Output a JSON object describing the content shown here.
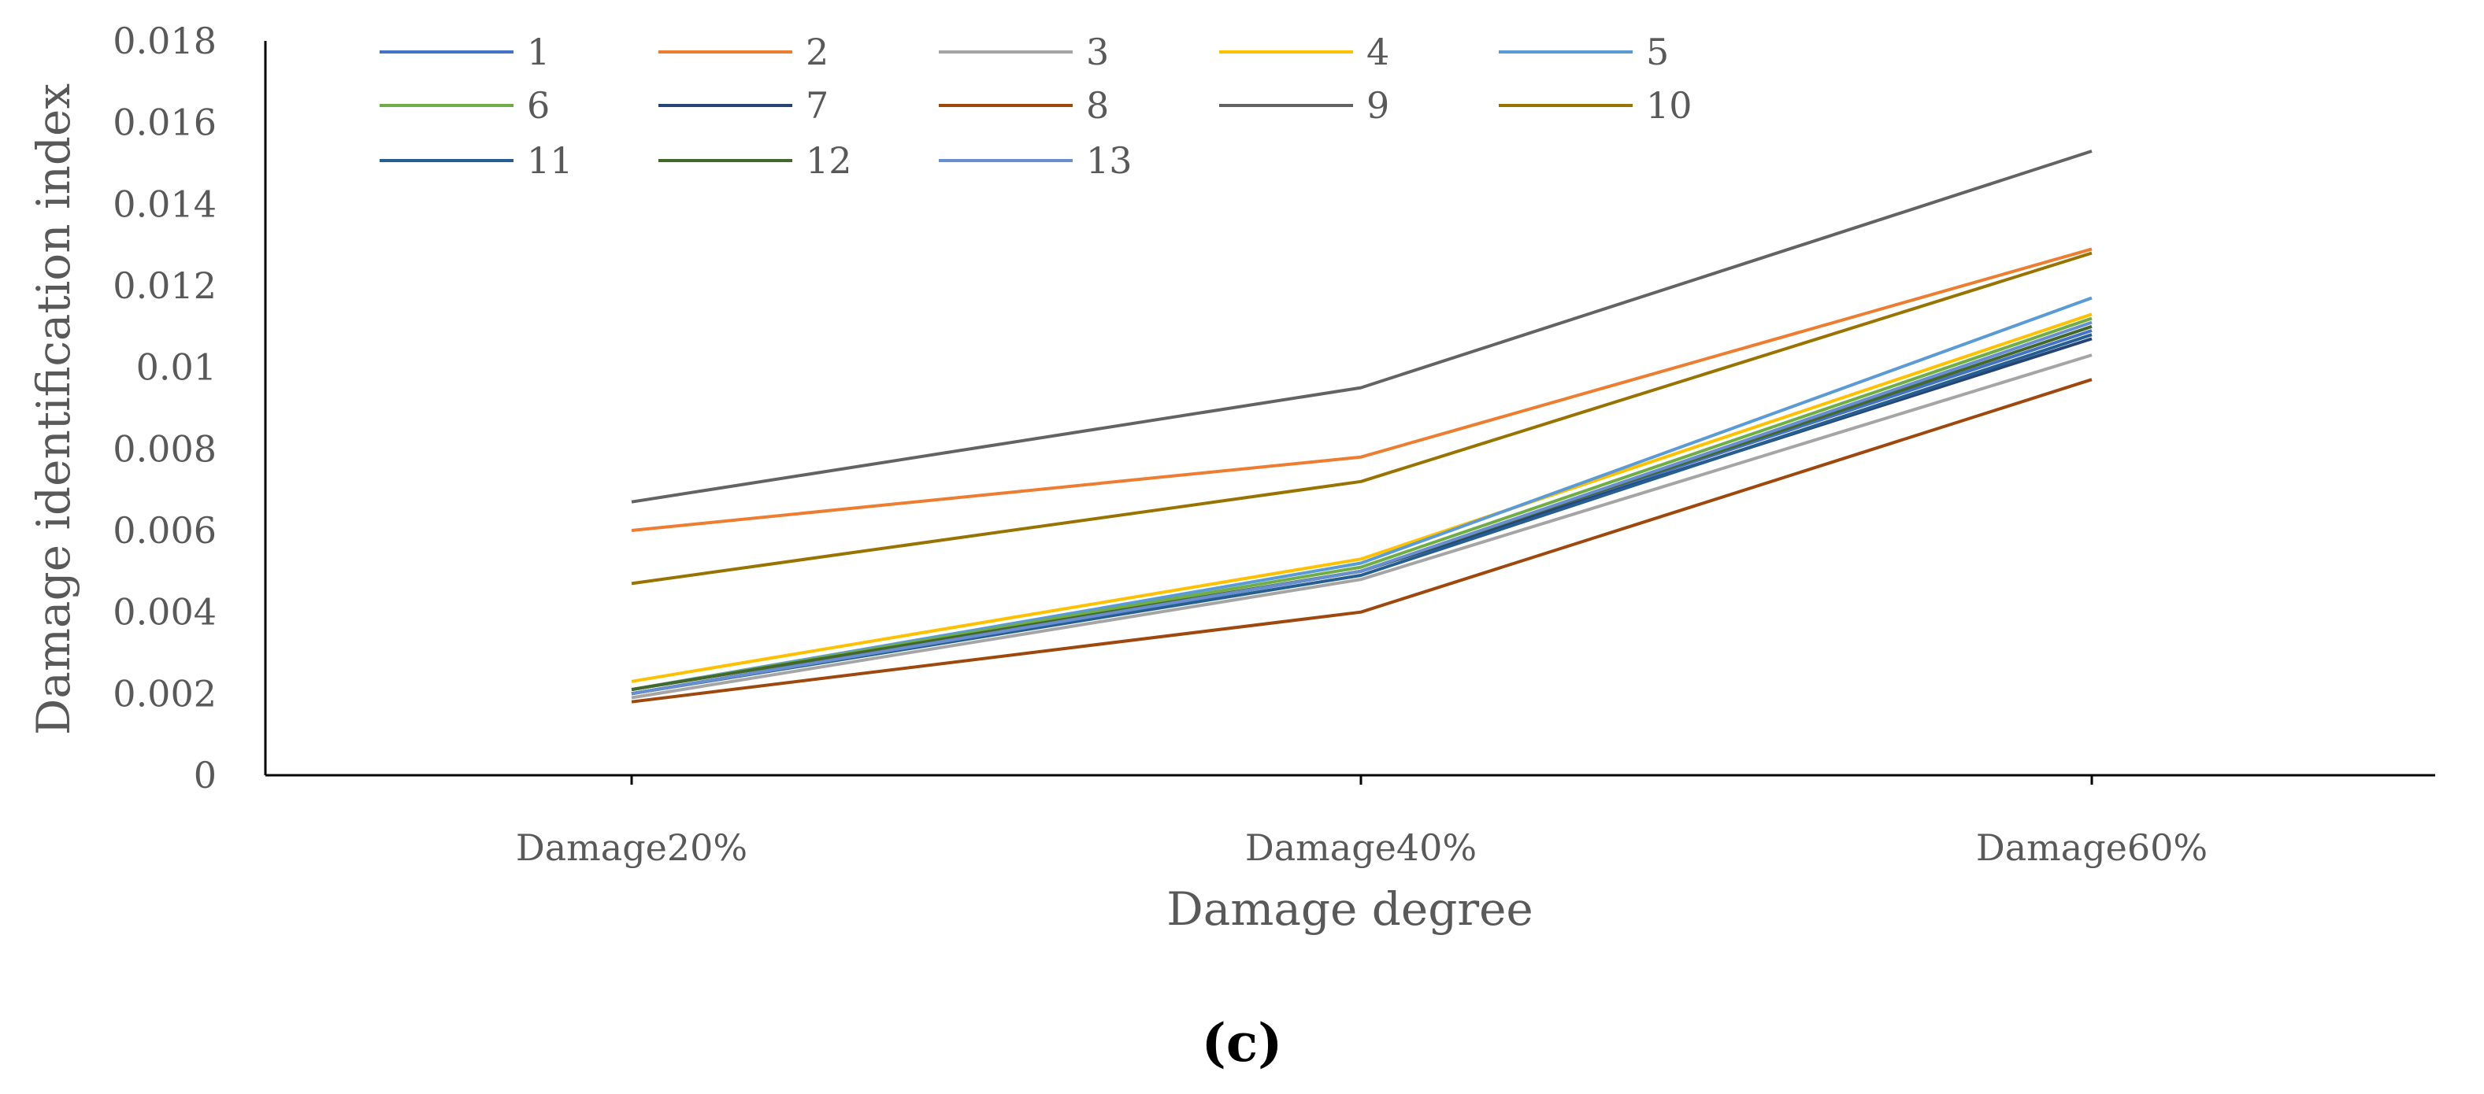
{
  "chart_data": {
    "type": "line",
    "title": "",
    "caption": "(c)",
    "xlabel": "Damage degree",
    "ylabel": "Damage identification index",
    "categories": [
      "Damage20%",
      "Damage40%",
      "Damage60%"
    ],
    "ylim": [
      0,
      0.018
    ],
    "yticks": [
      0,
      0.002,
      0.004,
      0.006,
      0.008,
      0.01,
      0.012,
      0.014,
      0.016,
      0.018
    ],
    "ytick_labels": [
      "0",
      "0.002",
      "0.004",
      "0.006",
      "0.008",
      "0.01",
      "0.012",
      "0.014",
      "0.016",
      "0.018"
    ],
    "grid": false,
    "legend_position": "top-left",
    "series": [
      {
        "name": "1",
        "color": "#4472C4",
        "values": [
          0.002,
          0.005,
          0.0109
        ]
      },
      {
        "name": "2",
        "color": "#ED7D31",
        "values": [
          0.006,
          0.0078,
          0.0129
        ]
      },
      {
        "name": "3",
        "color": "#A5A5A5",
        "values": [
          0.0019,
          0.0048,
          0.0103
        ]
      },
      {
        "name": "4",
        "color": "#FFC000",
        "values": [
          0.0023,
          0.0053,
          0.0113
        ]
      },
      {
        "name": "5",
        "color": "#5B9BD5",
        "values": [
          0.0021,
          0.0052,
          0.0117
        ]
      },
      {
        "name": "6",
        "color": "#70AD47",
        "values": [
          0.0021,
          0.0051,
          0.0112
        ]
      },
      {
        "name": "7",
        "color": "#264478",
        "values": [
          0.002,
          0.005,
          0.0107
        ]
      },
      {
        "name": "8",
        "color": "#9E480E",
        "values": [
          0.0018,
          0.004,
          0.0097
        ]
      },
      {
        "name": "9",
        "color": "#636363",
        "values": [
          0.0067,
          0.0095,
          0.0153
        ]
      },
      {
        "name": "10",
        "color": "#997300",
        "values": [
          0.0047,
          0.0072,
          0.0128
        ]
      },
      {
        "name": "11",
        "color": "#255E91",
        "values": [
          0.002,
          0.0049,
          0.0108
        ]
      },
      {
        "name": "12",
        "color": "#43682B",
        "values": [
          0.0021,
          0.005,
          0.011
        ]
      },
      {
        "name": "13",
        "color": "#698ED0",
        "values": [
          0.002,
          0.005,
          0.0111
        ]
      }
    ]
  }
}
